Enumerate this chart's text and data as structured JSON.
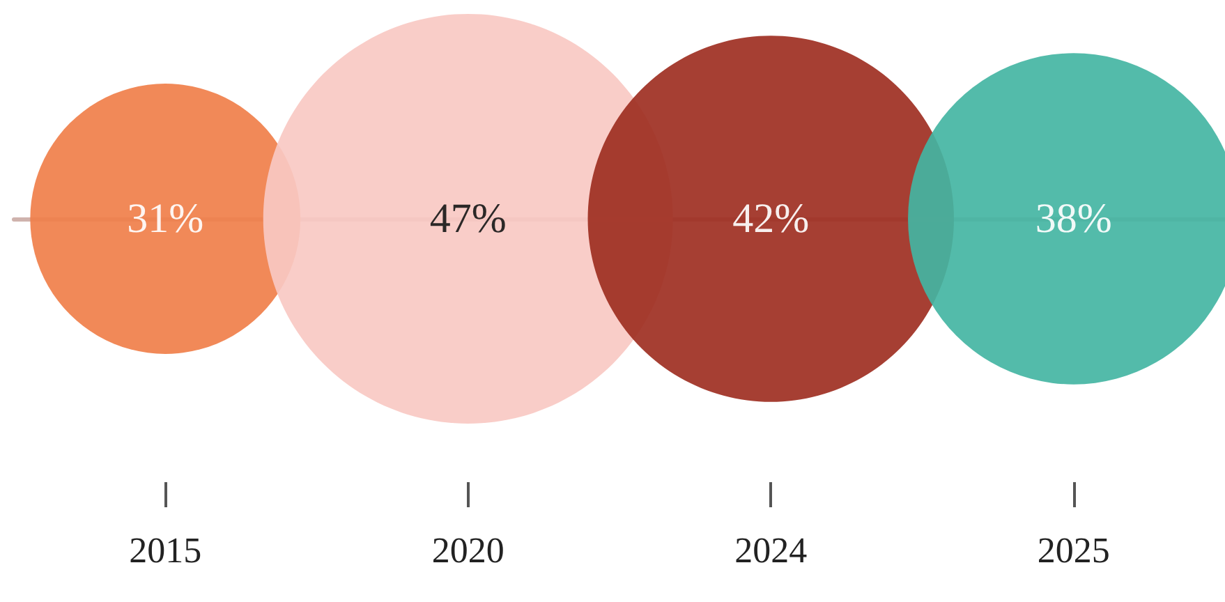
{
  "chart_data": {
    "type": "other",
    "categories": [
      "2015",
      "2020",
      "2024",
      "2025"
    ],
    "values": [
      31,
      47,
      42,
      38
    ],
    "value_labels": [
      "31%",
      "47%",
      "42%",
      "38%"
    ],
    "colors": [
      "#f07f4a",
      "#f9c9c3",
      "#9e2f22",
      "#44b5a3"
    ]
  }
}
